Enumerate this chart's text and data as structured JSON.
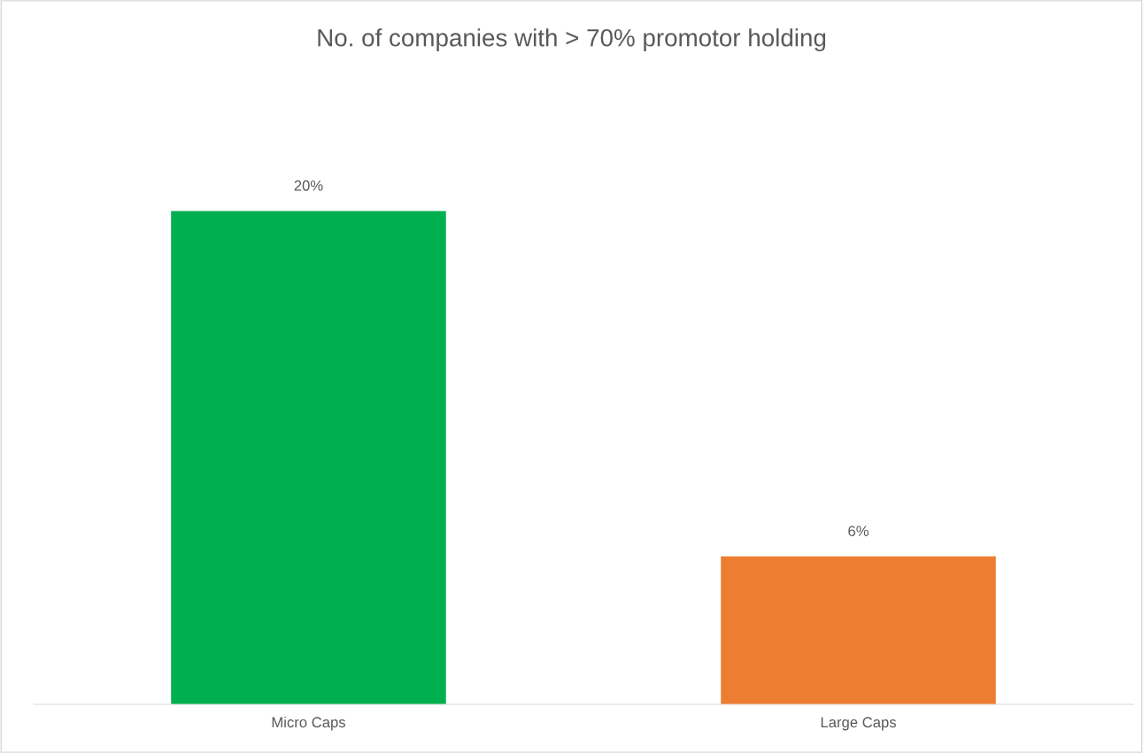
{
  "chart_data": {
    "type": "bar",
    "title": "No. of companies with > 70% promotor holding",
    "categories": [
      "Micro Caps",
      "Large Caps"
    ],
    "values": [
      20,
      6
    ],
    "colors": [
      "#00b050",
      "#ed7d31"
    ],
    "value_labels": [
      "20%",
      "6%"
    ],
    "tick_labels": "x",
    "grid": false,
    "legend": false
  }
}
